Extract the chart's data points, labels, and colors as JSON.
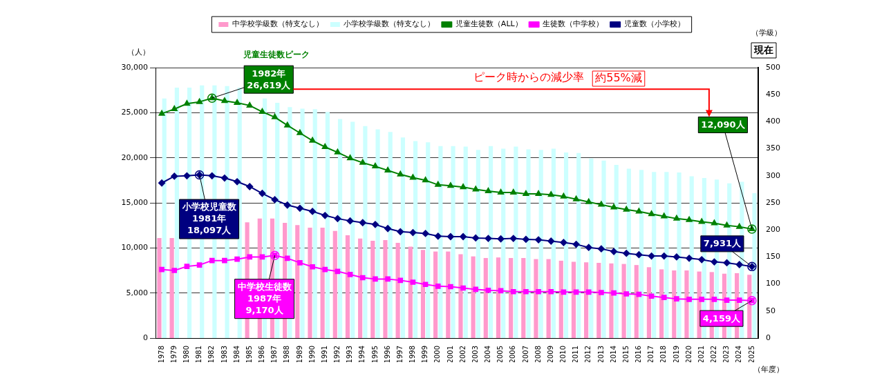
{
  "chart_data": {
    "type": "bar",
    "xlabel": "（年度）",
    "ylabel": "（人）",
    "y2label": "（学級）",
    "legend": "top",
    "grid": "y",
    "categories": [
      "1978",
      "1979",
      "1980",
      "1981",
      "1982",
      "1983",
      "1984",
      "1985",
      "1986",
      "1987",
      "1988",
      "1989",
      "1990",
      "1991",
      "1992",
      "1993",
      "1994",
      "1995",
      "1996",
      "1997",
      "1998",
      "1999",
      "2000",
      "2001",
      "2002",
      "2003",
      "2004",
      "2005",
      "2006",
      "2007",
      "2008",
      "2009",
      "2010",
      "2011",
      "2012",
      "2013",
      "2014",
      "2015",
      "2016",
      "2017",
      "2018",
      "2019",
      "2020",
      "2021",
      "2022",
      "2023",
      "2024",
      "2025"
    ],
    "ylim": [
      0,
      30000
    ],
    "yticks": [
      0,
      {
        "value": 5000,
        "label": "5,000"
      },
      {
        "value": 10000,
        "label": "10,000"
      },
      {
        "value": 15000,
        "label": "15,000"
      },
      {
        "value": 20000,
        "label": "20,000"
      },
      {
        "value": 25000,
        "label": "25,000"
      },
      {
        "value": 30000,
        "label": "30,000"
      }
    ],
    "y2lim": [
      0,
      500
    ],
    "y2ticks": [
      0,
      50,
      100,
      150,
      200,
      250,
      300,
      350,
      400,
      450,
      500
    ],
    "series": [
      {
        "name": "中学校学級数（特支なし）",
        "axis": "y2",
        "color": "#ff99cc",
        "values": [
          185,
          185,
          null,
          null,
          null,
          null,
          null,
          214,
          221,
          221,
          213,
          209,
          204,
          204,
          198,
          190,
          184,
          180,
          181,
          176,
          169,
          163,
          160,
          160,
          155,
          151,
          148,
          149,
          148,
          148,
          146,
          146,
          143,
          141,
          140,
          139,
          138,
          137,
          135,
          131,
          127,
          125,
          125,
          123,
          122,
          119,
          120,
          117
        ]
      },
      {
        "name": "小学校学級数（特支なし）",
        "axis": "y2",
        "color": "#ccffff",
        "values": [
          443,
          463,
          463,
          467,
          467,
          466,
          463,
          null,
          443,
          435,
          427,
          424,
          423,
          418,
          405,
          400,
          392,
          386,
          381,
          371,
          364,
          362,
          355,
          355,
          354,
          348,
          355,
          350,
          354,
          349,
          348,
          350,
          343,
          342,
          332,
          328,
          320,
          313,
          311,
          307,
          307,
          306,
          299,
          296,
          293,
          286,
          289,
          268
        ]
      },
      {
        "name": "児童生徒数（ALL）",
        "type": "line",
        "marker": "triangle",
        "color": "#008000",
        "values": [
          24900,
          25400,
          26000,
          26200,
          26619,
          26300,
          26100,
          25800,
          25100,
          24500,
          23600,
          22750,
          21900,
          21200,
          20600,
          19950,
          19450,
          19050,
          18600,
          18150,
          17800,
          17500,
          17000,
          16900,
          16750,
          16500,
          16300,
          16150,
          16150,
          16000,
          16000,
          15900,
          15700,
          15400,
          15100,
          14800,
          14500,
          14250,
          14050,
          13750,
          13500,
          13250,
          13100,
          12900,
          12750,
          12500,
          12350,
          12090
        ]
      },
      {
        "name": "生徒数（中学校）",
        "type": "line",
        "marker": "square",
        "color": "#ff00ff",
        "values": [
          7600,
          7500,
          7950,
          8100,
          8600,
          8600,
          8750,
          9000,
          9000,
          9170,
          8850,
          8350,
          7900,
          7600,
          7400,
          7050,
          6700,
          6550,
          6550,
          6400,
          6200,
          5950,
          5750,
          5700,
          5550,
          5400,
          5300,
          5250,
          5150,
          5150,
          5150,
          5150,
          5100,
          5100,
          5100,
          5050,
          5000,
          4900,
          4850,
          4650,
          4500,
          4350,
          4300,
          4300,
          4300,
          4200,
          4200,
          4159
        ]
      },
      {
        "name": "児童数（小学校）",
        "type": "line",
        "marker": "diamond",
        "color": "#000080",
        "values": [
          17200,
          17950,
          18000,
          18097,
          18000,
          17750,
          17350,
          16800,
          16050,
          15350,
          14750,
          14400,
          14050,
          13600,
          13250,
          13000,
          12800,
          12600,
          12150,
          11800,
          11700,
          11600,
          11300,
          11250,
          11250,
          11100,
          11050,
          11000,
          11050,
          10950,
          10900,
          10750,
          10600,
          10400,
          10050,
          9900,
          9600,
          9400,
          9250,
          9100,
          9100,
          9000,
          8850,
          8700,
          8450,
          8350,
          8150,
          7931
        ]
      }
    ],
    "annotations": [
      {
        "text": "1982年\n26,619人",
        "x": "1982",
        "y": 26619
      },
      {
        "text": "小学校児童数\n1981年\n18,097人",
        "x": "1981",
        "y": 18097
      },
      {
        "text": "中学校生徒数\n1987年\n9,170人",
        "x": "1987",
        "y": 9170
      },
      {
        "text": "12,090人",
        "x": "2025",
        "y": 12090
      },
      {
        "text": "7,931人",
        "x": "2025",
        "y": 7931
      },
      {
        "text": "4,159人",
        "x": "2025",
        "y": 4159
      },
      "児童生徒数ピーク",
      "ピーク時からの減少率",
      "約55%減",
      "現在"
    ]
  }
}
